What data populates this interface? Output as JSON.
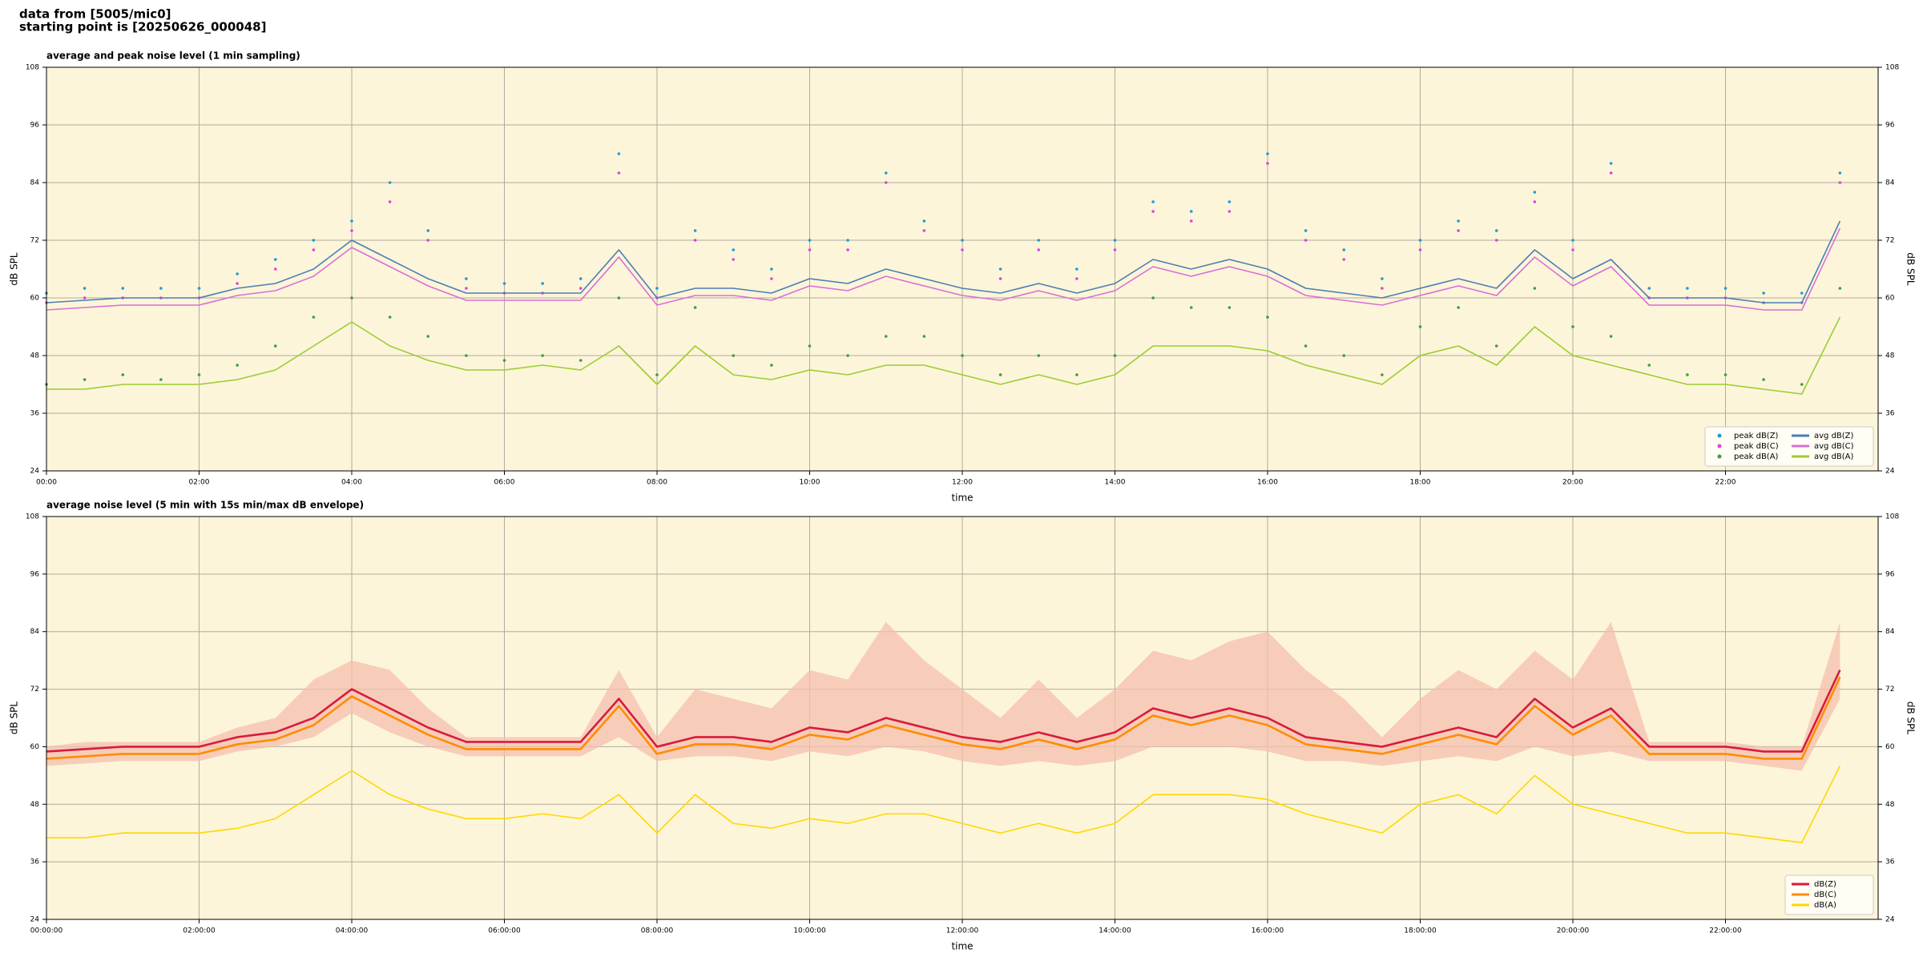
{
  "header": {
    "line1": "data from [5005/mic0]",
    "line2": "starting point is [20250626_000048]"
  },
  "chart_data": [
    {
      "type": "line",
      "title": "average and peak noise level (1 min sampling)",
      "xlabel": "time",
      "ylabel": "dB SPL",
      "xlim": [
        0,
        24
      ],
      "ylim": [
        24,
        108
      ],
      "yticks": [
        24,
        36,
        48,
        60,
        72,
        84,
        96,
        108
      ],
      "grid": true,
      "legend": "lower right",
      "legend_columns": 2,
      "xticks": [
        {
          "value": 0,
          "label": "00:00"
        },
        {
          "value": 2,
          "label": "02:00"
        },
        {
          "value": 4,
          "label": "04:00"
        },
        {
          "value": 6,
          "label": "06:00"
        },
        {
          "value": 8,
          "label": "08:00"
        },
        {
          "value": 10,
          "label": "10:00"
        },
        {
          "value": 12,
          "label": "12:00"
        },
        {
          "value": 14,
          "label": "14:00"
        },
        {
          "value": 16,
          "label": "16:00"
        },
        {
          "value": 18,
          "label": "18:00"
        },
        {
          "value": 20,
          "label": "20:00"
        },
        {
          "value": 22,
          "label": "22:00"
        }
      ],
      "x": [
        0,
        0.5,
        1,
        1.5,
        2,
        2.5,
        3,
        3.5,
        4,
        4.5,
        5,
        5.5,
        6,
        6.5,
        7,
        7.5,
        8,
        8.5,
        9,
        9.5,
        10,
        10.5,
        11,
        11.5,
        12,
        12.5,
        13,
        13.5,
        14,
        14.5,
        15,
        15.5,
        16,
        16.5,
        17,
        17.5,
        18,
        18.5,
        19,
        19.5,
        20,
        20.5,
        21,
        21.5,
        22,
        22.5,
        23,
        23.5
      ],
      "series": [
        {
          "name": "peak dB(Z)",
          "type": "scatter",
          "color": "#1f9bd6",
          "values": [
            61,
            62,
            62,
            62,
            62,
            65,
            68,
            72,
            76,
            84,
            74,
            64,
            63,
            63,
            64,
            90,
            62,
            74,
            70,
            66,
            72,
            72,
            86,
            76,
            72,
            66,
            72,
            66,
            72,
            80,
            78,
            80,
            90,
            74,
            70,
            64,
            72,
            76,
            74,
            82,
            72,
            88,
            62,
            62,
            62,
            61,
            61,
            86
          ]
        },
        {
          "name": "peak dB(C)",
          "type": "scatter",
          "color": "#e040e0",
          "values": [
            59,
            60,
            60,
            60,
            60,
            63,
            66,
            70,
            74,
            80,
            72,
            62,
            61,
            61,
            62,
            86,
            60,
            72,
            68,
            64,
            70,
            70,
            84,
            74,
            70,
            64,
            70,
            64,
            70,
            78,
            76,
            78,
            88,
            72,
            68,
            62,
            70,
            74,
            72,
            80,
            70,
            86,
            60,
            60,
            60,
            59,
            59,
            84
          ]
        },
        {
          "name": "peak dB(A)",
          "type": "scatter",
          "color": "#3c9e3c",
          "values": [
            42,
            43,
            44,
            43,
            44,
            46,
            50,
            56,
            60,
            56,
            52,
            48,
            47,
            48,
            47,
            60,
            44,
            58,
            48,
            46,
            50,
            48,
            52,
            52,
            48,
            44,
            48,
            44,
            48,
            60,
            58,
            58,
            56,
            50,
            48,
            44,
            54,
            58,
            50,
            62,
            54,
            52,
            46,
            44,
            44,
            43,
            42,
            62
          ]
        },
        {
          "name": "avg dB(Z)",
          "type": "line",
          "color": "#4a7fb5",
          "values": [
            59,
            59.5,
            60,
            60,
            60,
            62,
            63,
            66,
            72,
            68,
            64,
            61,
            61,
            61,
            61,
            70,
            60,
            62,
            62,
            61,
            64,
            63,
            66,
            64,
            62,
            61,
            63,
            61,
            63,
            68,
            66,
            68,
            66,
            62,
            61,
            60,
            62,
            64,
            62,
            70,
            64,
            68,
            60,
            60,
            60,
            59,
            59,
            76
          ]
        },
        {
          "name": "avg dB(C)",
          "type": "line",
          "color": "#d86fd8",
          "values": [
            57.5,
            58,
            58.5,
            58.5,
            58.5,
            60.5,
            61.5,
            64.5,
            70.5,
            66.5,
            62.5,
            59.5,
            59.5,
            59.5,
            59.5,
            68.5,
            58.5,
            60.5,
            60.5,
            59.5,
            62.5,
            61.5,
            64.5,
            62.5,
            60.5,
            59.5,
            61.5,
            59.5,
            61.5,
            66.5,
            64.5,
            66.5,
            64.5,
            60.5,
            59.5,
            58.5,
            60.5,
            62.5,
            60.5,
            68.5,
            62.5,
            66.5,
            58.5,
            58.5,
            58.5,
            57.5,
            57.5,
            74.5
          ]
        },
        {
          "name": "avg dB(A)",
          "type": "line",
          "color": "#9acd32",
          "values": [
            41,
            41,
            42,
            42,
            42,
            43,
            45,
            50,
            55,
            50,
            47,
            45,
            45,
            46,
            45,
            50,
            42,
            50,
            44,
            43,
            45,
            44,
            46,
            46,
            44,
            42,
            44,
            42,
            44,
            50,
            50,
            50,
            49,
            46,
            44,
            42,
            48,
            50,
            46,
            54,
            48,
            46,
            44,
            42,
            42,
            41,
            40,
            56
          ]
        }
      ]
    },
    {
      "type": "line",
      "title": "average noise level (5 min with 15s min/max dB envelope)",
      "xlabel": "time",
      "ylabel": "dB SPL",
      "xlim": [
        0,
        24
      ],
      "ylim": [
        24,
        108
      ],
      "yticks": [
        24,
        36,
        48,
        60,
        72,
        84,
        96,
        108
      ],
      "grid": true,
      "legend": "lower right",
      "legend_columns": 1,
      "xticks": [
        {
          "value": 0,
          "label": "00:00:00"
        },
        {
          "value": 2,
          "label": "02:00:00"
        },
        {
          "value": 4,
          "label": "04:00:00"
        },
        {
          "value": 6,
          "label": "06:00:00"
        },
        {
          "value": 8,
          "label": "08:00:00"
        },
        {
          "value": 10,
          "label": "10:00:00"
        },
        {
          "value": 12,
          "label": "12:00:00"
        },
        {
          "value": 14,
          "label": "14:00:00"
        },
        {
          "value": 16,
          "label": "16:00:00"
        },
        {
          "value": 18,
          "label": "18:00:00"
        },
        {
          "value": 20,
          "label": "20:00:00"
        },
        {
          "value": 22,
          "label": "22:00:00"
        }
      ],
      "x": [
        0,
        0.5,
        1,
        1.5,
        2,
        2.5,
        3,
        3.5,
        4,
        4.5,
        5,
        5.5,
        6,
        6.5,
        7,
        7.5,
        8,
        8.5,
        9,
        9.5,
        10,
        10.5,
        11,
        11.5,
        12,
        12.5,
        13,
        13.5,
        14,
        14.5,
        15,
        15.5,
        16,
        16.5,
        17,
        17.5,
        18,
        18.5,
        19,
        19.5,
        20,
        20.5,
        21,
        21.5,
        22,
        22.5,
        23,
        23.5
      ],
      "envelope": {
        "color": "#f4bfae",
        "min": [
          56,
          56.5,
          57,
          57,
          57,
          59,
          60,
          62,
          67,
          63,
          60,
          58,
          58,
          58,
          58,
          62,
          57,
          58,
          58,
          57,
          59,
          58,
          60,
          59,
          57,
          56,
          57,
          56,
          57,
          60,
          60,
          60,
          59,
          57,
          57,
          56,
          57,
          58,
          57,
          60,
          58,
          59,
          57,
          57,
          57,
          56,
          55,
          70
        ],
        "max": [
          60,
          61,
          61,
          61,
          61,
          64,
          66,
          74,
          78,
          76,
          68,
          62,
          62,
          62,
          62,
          76,
          62,
          72,
          70,
          68,
          76,
          74,
          86,
          78,
          72,
          66,
          74,
          66,
          72,
          80,
          78,
          82,
          84,
          76,
          70,
          62,
          70,
          76,
          72,
          80,
          74,
          86,
          61,
          61,
          61,
          60,
          60,
          86
        ]
      },
      "series": [
        {
          "name": "dB(Z)",
          "type": "line",
          "color": "#d81b3c",
          "values": [
            59,
            59.5,
            60,
            60,
            60,
            62,
            63,
            66,
            72,
            68,
            64,
            61,
            61,
            61,
            61,
            70,
            60,
            62,
            62,
            61,
            64,
            63,
            66,
            64,
            62,
            61,
            63,
            61,
            63,
            68,
            66,
            68,
            66,
            62,
            61,
            60,
            62,
            64,
            62,
            70,
            64,
            68,
            60,
            60,
            60,
            59,
            59,
            76
          ]
        },
        {
          "name": "dB(C)",
          "type": "line",
          "color": "#ff8c00",
          "values": [
            57.5,
            58,
            58.5,
            58.5,
            58.5,
            60.5,
            61.5,
            64.5,
            70.5,
            66.5,
            62.5,
            59.5,
            59.5,
            59.5,
            59.5,
            68.5,
            58.5,
            60.5,
            60.5,
            59.5,
            62.5,
            61.5,
            64.5,
            62.5,
            60.5,
            59.5,
            61.5,
            59.5,
            61.5,
            66.5,
            64.5,
            66.5,
            64.5,
            60.5,
            59.5,
            58.5,
            60.5,
            62.5,
            60.5,
            68.5,
            62.5,
            66.5,
            58.5,
            58.5,
            58.5,
            57.5,
            57.5,
            74.5
          ]
        },
        {
          "name": "dB(A)",
          "type": "line",
          "color": "#ffd700",
          "values": [
            41,
            41,
            42,
            42,
            42,
            43,
            45,
            50,
            55,
            50,
            47,
            45,
            45,
            46,
            45,
            50,
            42,
            50,
            44,
            43,
            45,
            44,
            46,
            46,
            44,
            42,
            44,
            42,
            44,
            50,
            50,
            50,
            49,
            46,
            44,
            42,
            48,
            50,
            46,
            54,
            48,
            46,
            44,
            42,
            42,
            41,
            40,
            56
          ]
        }
      ]
    }
  ]
}
